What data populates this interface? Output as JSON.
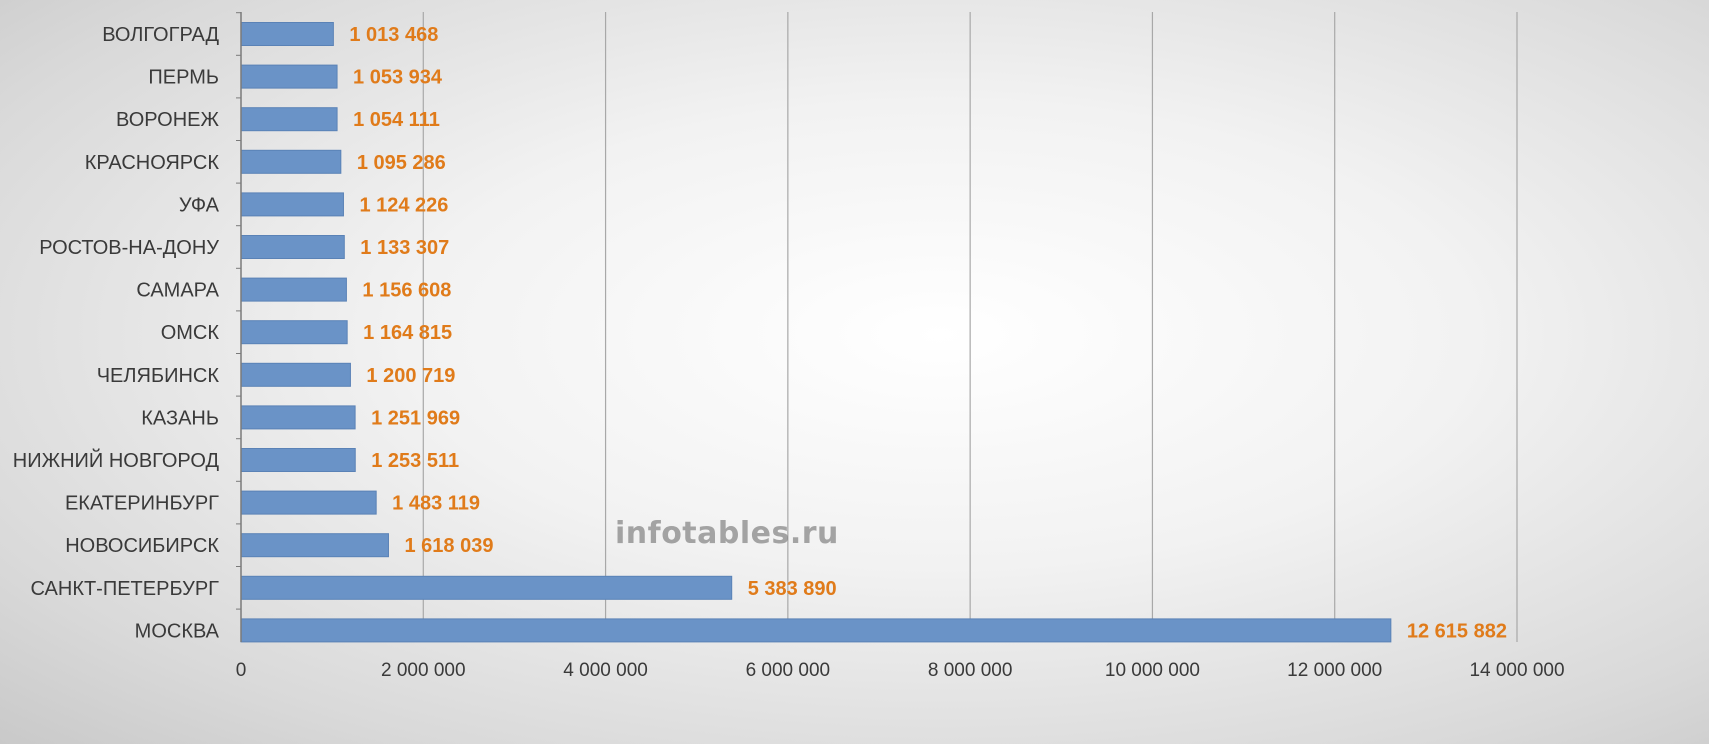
{
  "chart_data": {
    "type": "bar",
    "orientation": "horizontal",
    "categories": [
      "ВОЛГОГРАД",
      "ПЕРМЬ",
      "ВОРОНЕЖ",
      "КРАСНОЯРСК",
      "УФА",
      "РОСТОВ-НА-ДОНУ",
      "САМАРА",
      "ОМСК",
      "ЧЕЛЯБИНСК",
      "КАЗАНЬ",
      "НИЖНИЙ НОВГОРОД",
      "ЕКАТЕРИНБУРГ",
      "НОВОСИБИРСК",
      "САНКТ-ПЕТЕРБУРГ",
      "МОСКВА"
    ],
    "values": [
      1013468,
      1053934,
      1054111,
      1095286,
      1124226,
      1133307,
      1156608,
      1164815,
      1200719,
      1251969,
      1253511,
      1483119,
      1618039,
      5383890,
      12615882
    ],
    "value_labels": [
      "1 013 468",
      "1 053 934",
      "1 054 111",
      "1 095 286",
      "1 124 226",
      "1 133 307",
      "1 156 608",
      "1 164 815",
      "1 200 719",
      "1 251 969",
      "1 253 511",
      "1 483 119",
      "1 618 039",
      "5 383 890",
      "12 615 882"
    ],
    "xlim": [
      0,
      14000000
    ],
    "x_ticks": [
      0,
      2000000,
      4000000,
      6000000,
      8000000,
      10000000,
      12000000,
      14000000
    ],
    "x_tick_labels": [
      "0",
      "2 000 000",
      "4 000 000",
      "6 000 000",
      "8 000 000",
      "10 000 000",
      "12 000 000",
      "14 000 000"
    ],
    "grid": true,
    "legend": "none",
    "title": "",
    "xlabel": "",
    "ylabel": "",
    "watermark": "infotables.ru",
    "colors": {
      "bar": "#6a93c7",
      "bar_stroke": "#5a82b6",
      "value_label": "#e07b1a",
      "gridline": "#a8a8a8",
      "axis": "#7a7a7a",
      "category_text": "#3a3a3a"
    }
  }
}
